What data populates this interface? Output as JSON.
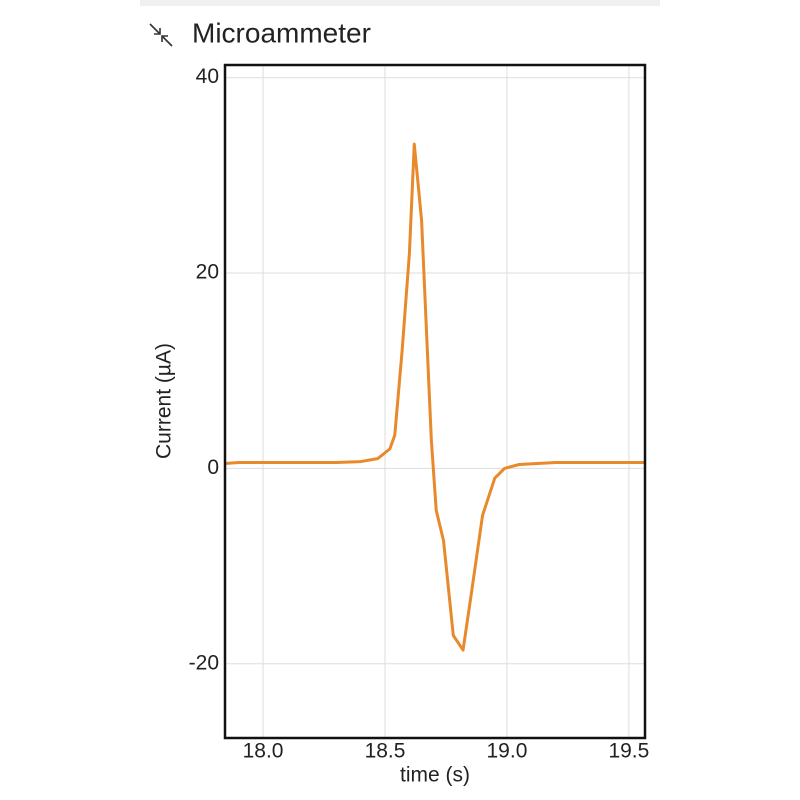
{
  "chart_data": {
    "type": "line",
    "title": "Microammeter",
    "x_label": "time (s)",
    "y_label": "Current (µA)",
    "x": [
      17.844,
      17.9,
      18.0,
      18.1,
      18.2,
      18.3,
      18.4,
      18.47,
      18.52,
      18.54,
      18.57,
      18.6,
      18.62,
      18.65,
      18.67,
      18.69,
      18.71,
      18.74,
      18.78,
      18.82,
      18.85,
      18.9,
      18.95,
      18.99,
      19.05,
      19.2,
      19.35,
      19.5,
      19.566
    ],
    "series": [
      {
        "name": "Current",
        "color": "#e8892c",
        "values": [
          0.5,
          0.6,
          0.6,
          0.6,
          0.6,
          0.6,
          0.7,
          1.0,
          2.0,
          3.4,
          12,
          22,
          33.2,
          25.4,
          14.1,
          2.9,
          -4.3,
          -7.4,
          -17.1,
          -18.6,
          -13.5,
          -4.8,
          -1.0,
          0.0,
          0.4,
          0.6,
          0.6,
          0.6,
          0.6
        ]
      }
    ],
    "xlim": [
      17.844,
      19.566
    ],
    "xticks": [
      {
        "value": 18,
        "label": "18.0"
      },
      18.5,
      {
        "value": 19,
        "label": "19.0"
      },
      19.5
    ],
    "ylim": [
      -27.6,
      41.3
    ],
    "yticks": [
      -20,
      0,
      20,
      40
    ],
    "grid": true
  }
}
